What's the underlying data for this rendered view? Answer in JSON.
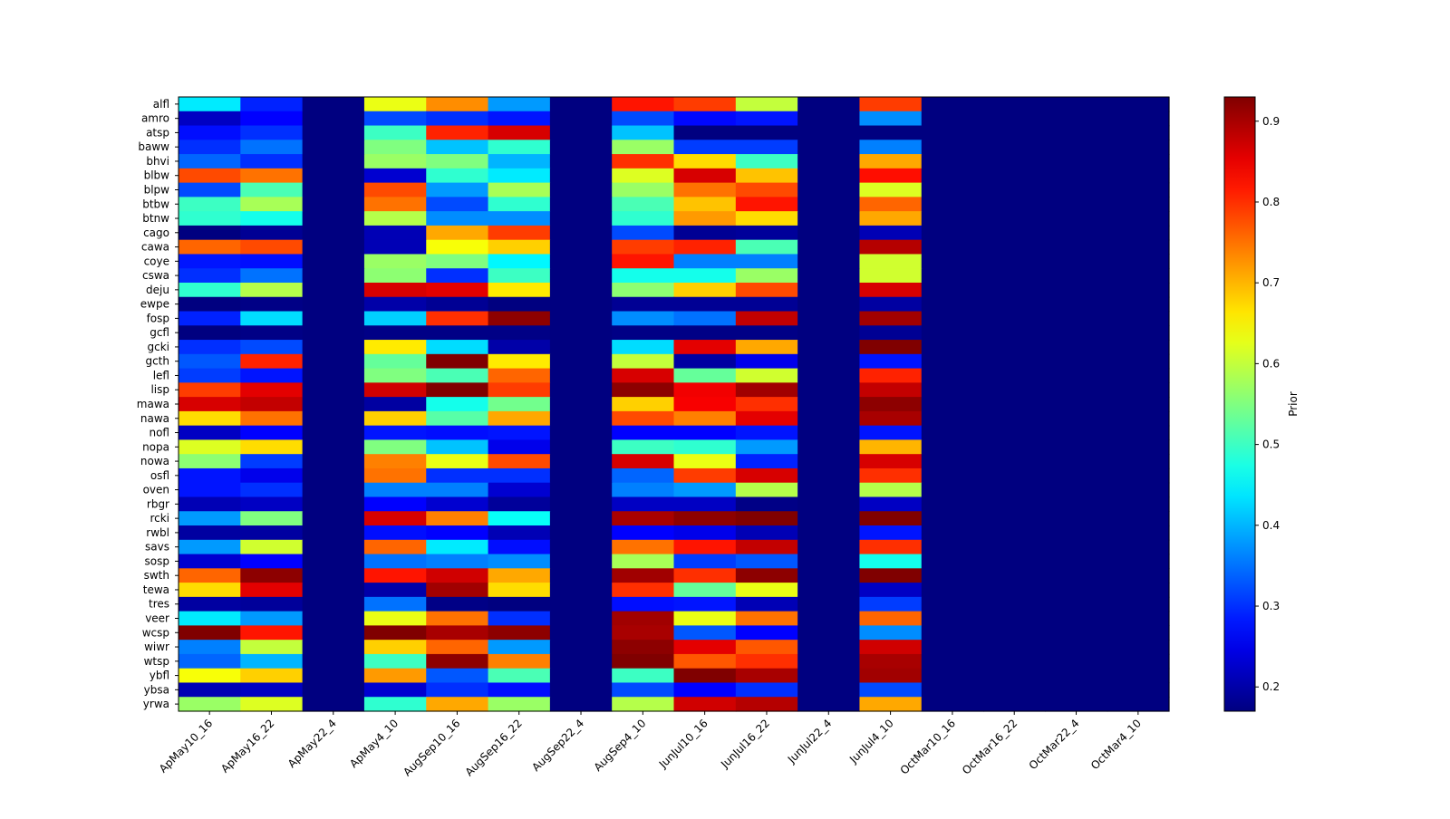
{
  "chart_data": {
    "type": "heatmap",
    "title": "",
    "xlabel": "",
    "ylabel": "",
    "colormap": "jet",
    "vmin": 0.17,
    "vmax": 0.93,
    "colorbar": {
      "label": "Prior",
      "ticks": [
        0.2,
        0.3,
        0.4,
        0.5,
        0.6,
        0.7,
        0.8,
        0.9
      ],
      "tick_labels": [
        "0.2",
        "0.3",
        "0.4",
        "0.5",
        "0.6",
        "0.7",
        "0.8",
        "0.9"
      ]
    },
    "columns": [
      "ApMay10_16",
      "ApMay16_22",
      "ApMay22_4",
      "ApMay4_10",
      "AugSep10_16",
      "AugSep16_22",
      "AugSep22_4",
      "AugSep4_10",
      "JunJul10_16",
      "JunJul16_22",
      "JunJul22_4",
      "JunJul4_10",
      "OctMar10_16",
      "OctMar16_22",
      "OctMar22_4",
      "OctMar4_10"
    ],
    "rows": [
      "alfl",
      "amro",
      "atsp",
      "baww",
      "bhvi",
      "blbw",
      "blpw",
      "btbw",
      "btnw",
      "cago",
      "cawa",
      "coye",
      "cswa",
      "deju",
      "ewpe",
      "fosp",
      "gcfl",
      "gcki",
      "gcth",
      "lefl",
      "lisp",
      "mawa",
      "nawa",
      "nofl",
      "nopa",
      "nowa",
      "osfl",
      "oven",
      "rbgr",
      "rcki",
      "rwbl",
      "savs",
      "sosp",
      "swth",
      "tewa",
      "tres",
      "veer",
      "wcsp",
      "wiwr",
      "wtsp",
      "ybfl",
      "ybsa",
      "yrwa"
    ],
    "values": [
      [
        0.44,
        0.29,
        0.17,
        0.63,
        0.73,
        0.38,
        0.17,
        0.82,
        0.79,
        0.6,
        0.17,
        0.79,
        0.17,
        0.17,
        0.17,
        0.17
      ],
      [
        0.22,
        0.265,
        0.17,
        0.32,
        0.3,
        0.28,
        0.17,
        0.32,
        0.27,
        0.28,
        0.17,
        0.37,
        0.17,
        0.17,
        0.17,
        0.17
      ],
      [
        0.275,
        0.3,
        0.17,
        0.5,
        0.81,
        0.865,
        0.17,
        0.41,
        0.17,
        0.17,
        0.17,
        0.17,
        0.17,
        0.17,
        0.17,
        0.17
      ],
      [
        0.3,
        0.35,
        0.17,
        0.55,
        0.41,
        0.49,
        0.17,
        0.57,
        0.31,
        0.31,
        0.17,
        0.36,
        0.17,
        0.17,
        0.17,
        0.17
      ],
      [
        0.34,
        0.3,
        0.17,
        0.57,
        0.55,
        0.4,
        0.17,
        0.8,
        0.67,
        0.5,
        0.17,
        0.71,
        0.17,
        0.17,
        0.17,
        0.17
      ],
      [
        0.78,
        0.75,
        0.17,
        0.23,
        0.49,
        0.44,
        0.17,
        0.62,
        0.865,
        0.69,
        0.17,
        0.825,
        0.17,
        0.17,
        0.17,
        0.17
      ],
      [
        0.32,
        0.51,
        0.17,
        0.78,
        0.38,
        0.58,
        0.17,
        0.57,
        0.75,
        0.78,
        0.17,
        0.62,
        0.17,
        0.17,
        0.17,
        0.17
      ],
      [
        0.5,
        0.58,
        0.17,
        0.75,
        0.32,
        0.49,
        0.17,
        0.51,
        0.69,
        0.82,
        0.17,
        0.76,
        0.17,
        0.17,
        0.17,
        0.17
      ],
      [
        0.49,
        0.47,
        0.17,
        0.59,
        0.37,
        0.37,
        0.17,
        0.49,
        0.72,
        0.67,
        0.17,
        0.71,
        0.17,
        0.17,
        0.17,
        0.17
      ],
      [
        0.17,
        0.185,
        0.17,
        0.21,
        0.71,
        0.79,
        0.17,
        0.32,
        0.185,
        0.19,
        0.17,
        0.21,
        0.17,
        0.17,
        0.17,
        0.17
      ],
      [
        0.76,
        0.78,
        0.17,
        0.21,
        0.64,
        0.68,
        0.17,
        0.79,
        0.81,
        0.51,
        0.17,
        0.89,
        0.17,
        0.17,
        0.17,
        0.17
      ],
      [
        0.28,
        0.275,
        0.17,
        0.57,
        0.55,
        0.45,
        0.17,
        0.82,
        0.36,
        0.36,
        0.17,
        0.61,
        0.17,
        0.17,
        0.17,
        0.17
      ],
      [
        0.3,
        0.35,
        0.17,
        0.56,
        0.3,
        0.5,
        0.17,
        0.47,
        0.47,
        0.57,
        0.17,
        0.61,
        0.17,
        0.17,
        0.17,
        0.17
      ],
      [
        0.49,
        0.59,
        0.17,
        0.865,
        0.855,
        0.66,
        0.17,
        0.56,
        0.68,
        0.78,
        0.17,
        0.865,
        0.17,
        0.17,
        0.17,
        0.17
      ],
      [
        0.17,
        0.175,
        0.17,
        0.2,
        0.185,
        0.17,
        0.17,
        0.185,
        0.185,
        0.185,
        0.17,
        0.195,
        0.17,
        0.17,
        0.17,
        0.17
      ],
      [
        0.29,
        0.43,
        0.17,
        0.42,
        0.8,
        0.92,
        0.17,
        0.37,
        0.35,
        0.88,
        0.17,
        0.905,
        0.17,
        0.17,
        0.17,
        0.17
      ],
      [
        0.17,
        0.175,
        0.17,
        0.175,
        0.175,
        0.175,
        0.17,
        0.175,
        0.175,
        0.175,
        0.17,
        0.185,
        0.17,
        0.17,
        0.17,
        0.17
      ],
      [
        0.3,
        0.32,
        0.17,
        0.66,
        0.43,
        0.2,
        0.17,
        0.43,
        0.855,
        0.71,
        0.17,
        0.93,
        0.17,
        0.17,
        0.17,
        0.17
      ],
      [
        0.33,
        0.81,
        0.17,
        0.53,
        0.93,
        0.66,
        0.17,
        0.6,
        0.195,
        0.25,
        0.17,
        0.28,
        0.17,
        0.17,
        0.17,
        0.17
      ],
      [
        0.31,
        0.28,
        0.17,
        0.55,
        0.51,
        0.76,
        0.17,
        0.865,
        0.53,
        0.61,
        0.17,
        0.81,
        0.17,
        0.17,
        0.17,
        0.17
      ],
      [
        0.79,
        0.855,
        0.17,
        0.87,
        0.93,
        0.79,
        0.17,
        0.92,
        0.845,
        0.905,
        0.17,
        0.88,
        0.17,
        0.17,
        0.17,
        0.17
      ],
      [
        0.865,
        0.88,
        0.17,
        0.195,
        0.47,
        0.54,
        0.17,
        0.68,
        0.84,
        0.8,
        0.17,
        0.92,
        0.17,
        0.17,
        0.17,
        0.17
      ],
      [
        0.67,
        0.75,
        0.17,
        0.68,
        0.52,
        0.71,
        0.17,
        0.78,
        0.74,
        0.855,
        0.17,
        0.9,
        0.17,
        0.17,
        0.17,
        0.17
      ],
      [
        0.22,
        0.265,
        0.17,
        0.28,
        0.275,
        0.28,
        0.17,
        0.265,
        0.265,
        0.28,
        0.17,
        0.28,
        0.17,
        0.17,
        0.17,
        0.17
      ],
      [
        0.62,
        0.67,
        0.17,
        0.55,
        0.41,
        0.25,
        0.17,
        0.5,
        0.49,
        0.38,
        0.17,
        0.7,
        0.17,
        0.17,
        0.17,
        0.17
      ],
      [
        0.56,
        0.31,
        0.17,
        0.74,
        0.63,
        0.78,
        0.17,
        0.865,
        0.63,
        0.29,
        0.17,
        0.865,
        0.17,
        0.17,
        0.17,
        0.17
      ],
      [
        0.28,
        0.25,
        0.17,
        0.75,
        0.3,
        0.3,
        0.17,
        0.34,
        0.79,
        0.865,
        0.17,
        0.8,
        0.17,
        0.17,
        0.17,
        0.17
      ],
      [
        0.28,
        0.3,
        0.17,
        0.36,
        0.36,
        0.23,
        0.17,
        0.36,
        0.38,
        0.59,
        0.17,
        0.59,
        0.17,
        0.17,
        0.17,
        0.17
      ],
      [
        0.21,
        0.22,
        0.17,
        0.265,
        0.23,
        0.19,
        0.17,
        0.22,
        0.22,
        0.175,
        0.17,
        0.22,
        0.17,
        0.17,
        0.17,
        0.17
      ],
      [
        0.38,
        0.55,
        0.17,
        0.865,
        0.74,
        0.46,
        0.17,
        0.9,
        0.92,
        0.93,
        0.17,
        0.93,
        0.17,
        0.17,
        0.17,
        0.17
      ],
      [
        0.195,
        0.195,
        0.17,
        0.275,
        0.265,
        0.21,
        0.17,
        0.265,
        0.25,
        0.21,
        0.17,
        0.28,
        0.17,
        0.17,
        0.17,
        0.17
      ],
      [
        0.38,
        0.61,
        0.17,
        0.76,
        0.44,
        0.275,
        0.17,
        0.75,
        0.82,
        0.88,
        0.17,
        0.8,
        0.17,
        0.17,
        0.17,
        0.17
      ],
      [
        0.23,
        0.265,
        0.17,
        0.35,
        0.36,
        0.37,
        0.17,
        0.58,
        0.31,
        0.33,
        0.17,
        0.47,
        0.17,
        0.17,
        0.17,
        0.17
      ],
      [
        0.76,
        0.92,
        0.17,
        0.82,
        0.87,
        0.71,
        0.17,
        0.905,
        0.8,
        0.92,
        0.17,
        0.93,
        0.17,
        0.17,
        0.17,
        0.17
      ],
      [
        0.67,
        0.855,
        0.17,
        0.2,
        0.905,
        0.67,
        0.17,
        0.8,
        0.53,
        0.63,
        0.17,
        0.22,
        0.17,
        0.17,
        0.17,
        0.17
      ],
      [
        0.195,
        0.19,
        0.17,
        0.35,
        0.175,
        0.17,
        0.17,
        0.275,
        0.28,
        0.21,
        0.17,
        0.31,
        0.17,
        0.17,
        0.17,
        0.17
      ],
      [
        0.44,
        0.38,
        0.17,
        0.63,
        0.75,
        0.3,
        0.17,
        0.905,
        0.63,
        0.75,
        0.17,
        0.76,
        0.17,
        0.17,
        0.17,
        0.17
      ],
      [
        0.93,
        0.82,
        0.17,
        0.93,
        0.9,
        0.92,
        0.17,
        0.9,
        0.33,
        0.265,
        0.17,
        0.37,
        0.17,
        0.17,
        0.17,
        0.17
      ],
      [
        0.36,
        0.6,
        0.17,
        0.68,
        0.76,
        0.38,
        0.17,
        0.92,
        0.855,
        0.77,
        0.17,
        0.87,
        0.17,
        0.17,
        0.17,
        0.17
      ],
      [
        0.34,
        0.4,
        0.17,
        0.5,
        0.92,
        0.74,
        0.17,
        0.93,
        0.77,
        0.8,
        0.17,
        0.9,
        0.17,
        0.17,
        0.17,
        0.17
      ],
      [
        0.64,
        0.68,
        0.17,
        0.72,
        0.33,
        0.51,
        0.17,
        0.5,
        0.93,
        0.9,
        0.17,
        0.905,
        0.17,
        0.17,
        0.17,
        0.17
      ],
      [
        0.21,
        0.22,
        0.17,
        0.23,
        0.3,
        0.275,
        0.17,
        0.32,
        0.265,
        0.3,
        0.17,
        0.32,
        0.17,
        0.17,
        0.17,
        0.17
      ],
      [
        0.57,
        0.62,
        0.17,
        0.49,
        0.71,
        0.57,
        0.17,
        0.59,
        0.87,
        0.89,
        0.17,
        0.71,
        0.17,
        0.17,
        0.17,
        0.17
      ]
    ]
  }
}
